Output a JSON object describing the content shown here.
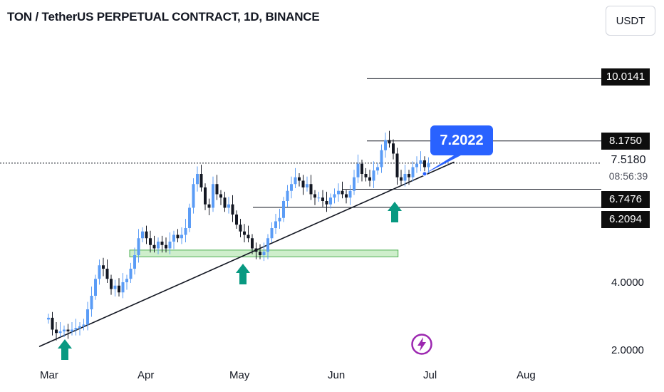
{
  "header": {
    "title": "TON / TetherUS PERPETUAL CONTRACT, 1D, BINANCE",
    "currency_button": "USDT"
  },
  "price_tags": {
    "level_1": "10.0141",
    "level_2": "8.1750",
    "current": "7.5180",
    "countdown": "08:56:39",
    "level_3": "6.7476",
    "level_4": "6.2094"
  },
  "callout": {
    "text": "7.2022",
    "color": "#2962ff"
  },
  "y_axis_labels": [
    "4.0000",
    "2.0000"
  ],
  "x_axis_labels": [
    "Mar",
    "Apr",
    "May",
    "Jun",
    "Jul",
    "Aug"
  ],
  "icons": [
    "up-arrow-icon",
    "lightning-icon"
  ],
  "colors": {
    "candle_up": "#5b9cf6",
    "candle_down": "#131722",
    "arrow": "#089981",
    "support_zone": "#a5e0a0",
    "lightning": "#9c27b0",
    "callout": "#2962ff"
  },
  "chart_data": {
    "type": "candlestick",
    "title": "TON / TetherUS PERPETUAL CONTRACT, 1D, BINANCE",
    "x_range": [
      "2024-02-26",
      "2024-08-05"
    ],
    "y_ticks": [
      2.0,
      4.0
    ],
    "horizontal_levels": [
      10.0141,
      8.175,
      6.7476,
      6.2094
    ],
    "current_price": 7.518,
    "annotation_price": 7.2022,
    "support_zone": {
      "from": "2024-03-26",
      "to": "2024-06-20",
      "low": 4.75,
      "high": 4.95
    },
    "trendline": {
      "from_date": "2024-02-26",
      "from_price": 2.1,
      "to_date": "2024-07-08",
      "to_price": 7.55
    },
    "buy_arrows": [
      "2024-03-02",
      "2024-05-01",
      "2024-06-18"
    ],
    "closes": [
      2.95,
      2.6,
      2.5,
      2.55,
      2.6,
      2.55,
      2.6,
      2.65,
      2.7,
      2.75,
      3.2,
      3.6,
      4.1,
      4.5,
      4.4,
      4.1,
      3.8,
      3.9,
      3.7,
      4.0,
      4.1,
      4.4,
      4.8,
      5.3,
      5.5,
      5.3,
      5.1,
      5.0,
      5.2,
      5.1,
      5.0,
      5.2,
      5.4,
      5.3,
      5.4,
      5.6,
      6.2,
      6.9,
      7.2,
      6.8,
      6.3,
      6.2,
      6.9,
      6.6,
      6.5,
      6.2,
      6.3,
      6.0,
      5.7,
      5.5,
      5.4,
      5.3,
      5.0,
      4.9,
      4.8,
      4.9,
      5.3,
      5.6,
      5.8,
      5.9,
      6.4,
      6.7,
      6.9,
      7.1,
      7.0,
      6.8,
      6.9,
      6.6,
      6.5,
      6.5,
      6.4,
      6.3,
      6.5,
      6.6,
      6.7,
      6.6,
      6.5,
      6.7,
      7.1,
      7.5,
      7.2,
      7.1,
      7.0,
      7.3,
      7.4,
      7.9,
      8.2,
      8.1,
      7.8,
      7.1,
      7.0,
      7.2,
      7.1,
      7.4,
      7.5,
      7.6,
      7.4,
      7.52
    ]
  }
}
